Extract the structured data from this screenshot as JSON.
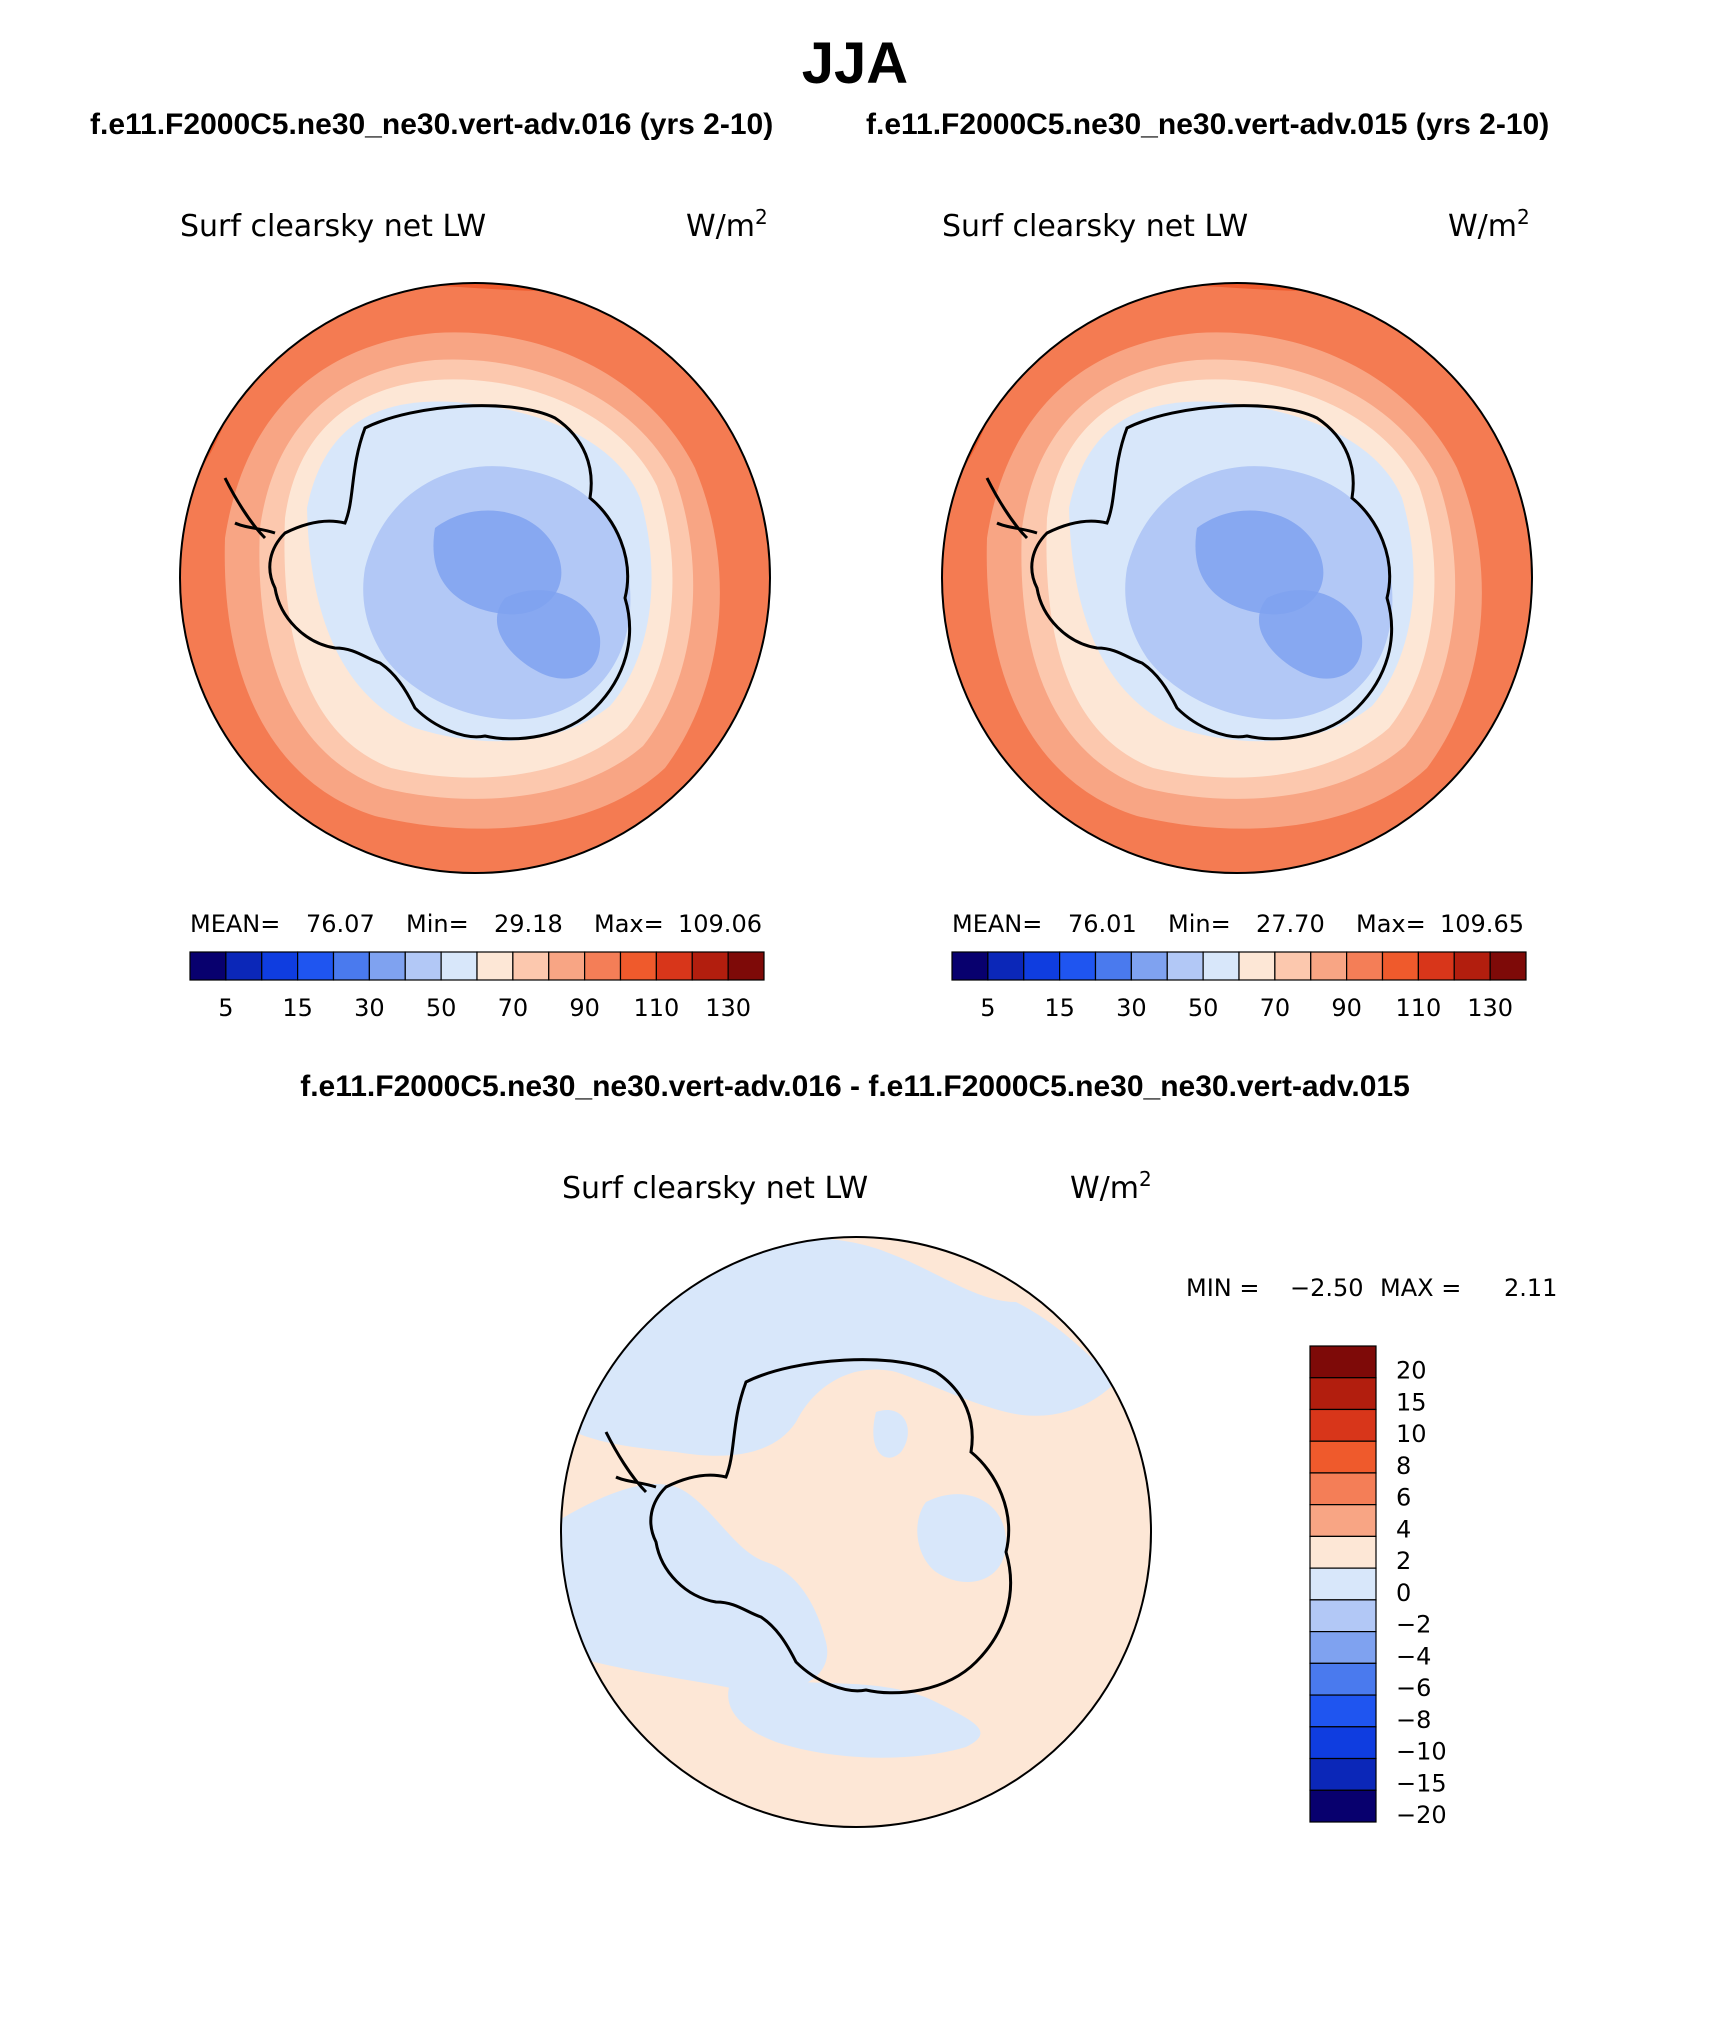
{
  "header": {
    "title": "JJA",
    "case1": "f.e11.F2000C5.ne30_ne30.vert-adv.016 (yrs 2-10)",
    "case2": "f.e11.F2000C5.ne30_ne30.vert-adv.015 (yrs 2-10)",
    "diff_title": "f.e11.F2000C5.ne30_ne30.vert-adv.016 - f.e11.F2000C5.ne30_ne30.vert-adv.015"
  },
  "panels": [
    {
      "variable": "Surf clearsky net LW",
      "units": "W/m",
      "units_sup": "2",
      "stats": {
        "mean_label": "MEAN=",
        "mean": "76.07",
        "min_label": "Min=",
        "min": "29.18",
        "max_label": "Max=",
        "max": "109.06"
      }
    },
    {
      "variable": "Surf clearsky net LW",
      "units": "W/m",
      "units_sup": "2",
      "stats": {
        "mean_label": "MEAN=",
        "mean": "76.01",
        "min_label": "Min=",
        "min": "27.70",
        "max_label": "Max=",
        "max": "109.65"
      }
    }
  ],
  "diff_panel": {
    "variable": "Surf clearsky net LW",
    "units": "W/m",
    "units_sup": "2",
    "min_label": "MIN =",
    "min": "−2.50",
    "max_label": "MAX =",
    "max": "2.11"
  },
  "colorbar_main": {
    "colors": [
      "#08006e",
      "#0b27b8",
      "#0f3de0",
      "#1f55f0",
      "#4a7aee",
      "#7fa2f0",
      "#b2c8f6",
      "#d8e7fa",
      "#fde7d6",
      "#fcc8ae",
      "#f8a584",
      "#f47e57",
      "#ef5a2c",
      "#d8361a",
      "#b21e0e",
      "#7e0a08"
    ],
    "tick_labels": [
      "5",
      "15",
      "30",
      "50",
      "70",
      "90",
      "110",
      "130"
    ]
  },
  "colorbar_diff": {
    "colors": [
      "#7e0a08",
      "#b21e0e",
      "#d8361a",
      "#ef5a2c",
      "#f47e57",
      "#f8a584",
      "#fde7d6",
      "#d8e7fa",
      "#b2c8f6",
      "#7fa2f0",
      "#4a7aee",
      "#1f55f0",
      "#0f3de0",
      "#0b27b8",
      "#08006e"
    ],
    "tick_labels": [
      "20",
      "15",
      "10",
      "8",
      "6",
      "4",
      "2",
      "0",
      "−2",
      "−4",
      "−6",
      "−8",
      "−10",
      "−15",
      "−20"
    ]
  }
}
